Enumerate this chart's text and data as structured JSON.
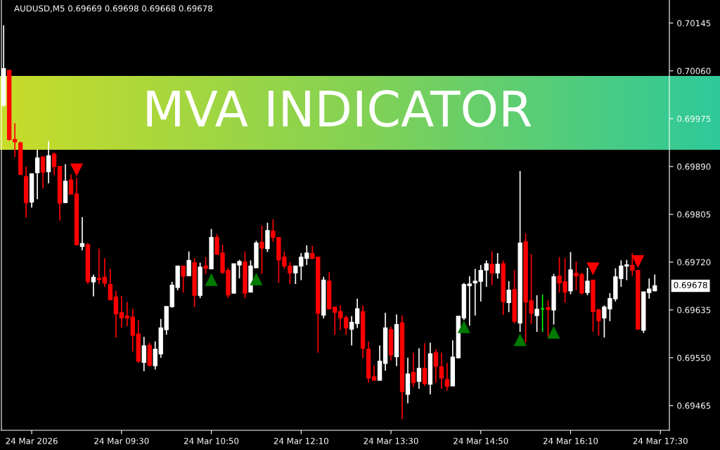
{
  "chart_data": {
    "type": "candlestick",
    "title": "MVA INDICATOR",
    "annotations": [
      "AUDUSD,M5 0.69669 0.69698 0.69668 0.69678",
      "0.69678"
    ],
    "x": [
      "2026-03-24T07:45",
      "2026-03-24T07:50",
      "2026-03-24T07:55",
      "2026-03-24T08:00",
      "2026-03-24T08:05",
      "2026-03-24T08:10",
      "2026-03-24T08:15",
      "2026-03-24T08:20",
      "2026-03-24T08:25",
      "2026-03-24T08:30",
      "2026-03-24T08:35",
      "2026-03-24T08:40",
      "2026-03-24T08:45",
      "2026-03-24T08:50",
      "2026-03-24T08:55",
      "2026-03-24T09:00",
      "2026-03-24T09:05",
      "2026-03-24T09:10",
      "2026-03-24T09:15",
      "2026-03-24T09:20",
      "2026-03-24T09:25",
      "2026-03-24T09:30",
      "2026-03-24T09:35",
      "2026-03-24T09:40",
      "2026-03-24T09:45",
      "2026-03-24T09:50",
      "2026-03-24T09:55",
      "2026-03-24T10:00",
      "2026-03-24T10:05",
      "2026-03-24T10:10",
      "2026-03-24T10:15",
      "2026-03-24T10:20",
      "2026-03-24T10:25",
      "2026-03-24T10:30",
      "2026-03-24T10:35",
      "2026-03-24T10:40",
      "2026-03-24T10:45",
      "2026-03-24T10:50",
      "2026-03-24T10:55",
      "2026-03-24T11:00",
      "2026-03-24T11:05",
      "2026-03-24T11:10",
      "2026-03-24T11:15",
      "2026-03-24T11:20",
      "2026-03-24T11:25",
      "2026-03-24T11:30",
      "2026-03-24T11:35",
      "2026-03-24T11:40",
      "2026-03-24T11:45",
      "2026-03-24T11:50",
      "2026-03-24T11:55",
      "2026-03-24T12:00",
      "2026-03-24T12:05",
      "2026-03-24T12:10",
      "2026-03-24T12:15",
      "2026-03-24T12:20",
      "2026-03-24T12:25",
      "2026-03-24T12:30",
      "2026-03-24T12:35",
      "2026-03-24T12:40",
      "2026-03-24T12:45",
      "2026-03-24T12:50",
      "2026-03-24T12:55",
      "2026-03-24T13:00",
      "2026-03-24T13:05",
      "2026-03-24T13:10",
      "2026-03-24T13:15",
      "2026-03-24T13:20",
      "2026-03-24T13:25",
      "2026-03-24T13:30",
      "2026-03-24T13:35",
      "2026-03-24T13:40",
      "2026-03-24T13:45",
      "2026-03-24T13:50",
      "2026-03-24T13:55",
      "2026-03-24T14:00",
      "2026-03-24T14:05",
      "2026-03-24T14:10",
      "2026-03-24T14:15",
      "2026-03-24T14:20",
      "2026-03-24T14:25",
      "2026-03-24T14:30",
      "2026-03-24T14:35",
      "2026-03-24T14:40",
      "2026-03-24T14:45",
      "2026-03-24T14:50",
      "2026-03-24T14:55",
      "2026-03-24T15:00",
      "2026-03-24T15:05",
      "2026-03-24T15:10",
      "2026-03-24T15:15",
      "2026-03-24T15:20",
      "2026-03-24T15:25",
      "2026-03-24T15:30",
      "2026-03-24T15:35",
      "2026-03-24T15:40",
      "2026-03-24T15:45",
      "2026-03-24T15:50",
      "2026-03-24T15:55",
      "2026-03-24T16:00",
      "2026-03-24T16:05",
      "2026-03-24T16:10",
      "2026-03-24T16:15",
      "2026-03-24T16:20",
      "2026-03-24T16:25",
      "2026-03-24T16:30",
      "2026-03-24T16:35",
      "2026-03-24T16:40",
      "2026-03-24T16:45",
      "2026-03-24T16:50",
      "2026-03-24T16:55",
      "2026-03-24T17:00",
      "2026-03-24T17:05",
      "2026-03-24T17:10",
      "2026-03-24T17:15",
      "2026-03-24T17:20",
      "2026-03-24T17:25"
    ],
    "ohlc": [
      [
        0.69999,
        0.70141,
        0.69996,
        0.70064
      ],
      [
        0.70061,
        0.70061,
        0.69936,
        0.69938
      ],
      [
        0.69938,
        0.69967,
        0.69907,
        0.69934
      ],
      [
        0.69932,
        0.69934,
        0.69875,
        0.69876
      ],
      [
        0.69872,
        0.6989,
        0.69799,
        0.69826
      ],
      [
        0.69827,
        0.69877,
        0.69817,
        0.69877
      ],
      [
        0.69879,
        0.6992,
        0.69832,
        0.69905
      ],
      [
        0.69907,
        0.69907,
        0.69851,
        0.6988
      ],
      [
        0.69881,
        0.69935,
        0.6986,
        0.69909
      ],
      [
        0.69912,
        0.69915,
        0.69875,
        0.6989
      ],
      [
        0.6989,
        0.6989,
        0.69794,
        0.69825
      ],
      [
        0.69826,
        0.69894,
        0.69825,
        0.69864
      ],
      [
        0.69866,
        0.69876,
        0.69841,
        0.69841
      ],
      [
        0.69841,
        0.6987,
        0.6975,
        0.69751
      ],
      [
        0.69748,
        0.698,
        0.69741,
        0.69753
      ],
      [
        0.69751,
        0.69754,
        0.69681,
        0.69686
      ],
      [
        0.69685,
        0.69698,
        0.69659,
        0.69693
      ],
      [
        0.69691,
        0.69744,
        0.69681,
        0.69689
      ],
      [
        0.69693,
        0.69727,
        0.69676,
        0.69683
      ],
      [
        0.6968,
        0.69708,
        0.69653,
        0.69653
      ],
      [
        0.69658,
        0.69669,
        0.69586,
        0.69628
      ],
      [
        0.6963,
        0.6966,
        0.69603,
        0.69621
      ],
      [
        0.69624,
        0.69649,
        0.69606,
        0.69621
      ],
      [
        0.69622,
        0.69637,
        0.69561,
        0.6959
      ],
      [
        0.69592,
        0.69617,
        0.69541,
        0.69544
      ],
      [
        0.69542,
        0.69587,
        0.69526,
        0.69571
      ],
      [
        0.69572,
        0.69577,
        0.69534,
        0.69537
      ],
      [
        0.69536,
        0.69579,
        0.69529,
        0.69565
      ],
      [
        0.69557,
        0.69619,
        0.6955,
        0.69603
      ],
      [
        0.696,
        0.69641,
        0.69591,
        0.69641
      ],
      [
        0.69641,
        0.69685,
        0.69639,
        0.69679
      ],
      [
        0.69675,
        0.69713,
        0.6967,
        0.69713
      ],
      [
        0.69713,
        0.69713,
        0.69666,
        0.69695
      ],
      [
        0.69696,
        0.69739,
        0.69696,
        0.69723
      ],
      [
        0.69719,
        0.69727,
        0.6964,
        0.69661
      ],
      [
        0.69661,
        0.69719,
        0.69656,
        0.69711
      ],
      [
        0.69713,
        0.69729,
        0.69699,
        0.69709
      ],
      [
        0.69708,
        0.69779,
        0.69708,
        0.69764
      ],
      [
        0.69764,
        0.6977,
        0.69733,
        0.69734
      ],
      [
        0.69736,
        0.69751,
        0.69699,
        0.69702
      ],
      [
        0.69705,
        0.6971,
        0.69656,
        0.69662
      ],
      [
        0.69665,
        0.69717,
        0.69664,
        0.69717
      ],
      [
        0.69715,
        0.69724,
        0.69691,
        0.69721
      ],
      [
        0.6972,
        0.69739,
        0.69656,
        0.69665
      ],
      [
        0.69667,
        0.69723,
        0.69667,
        0.69713
      ],
      [
        0.6971,
        0.69758,
        0.6971,
        0.69754
      ],
      [
        0.69755,
        0.69785,
        0.69699,
        0.69745
      ],
      [
        0.69744,
        0.6979,
        0.69738,
        0.69776
      ],
      [
        0.69775,
        0.69796,
        0.69756,
        0.69764
      ],
      [
        0.69764,
        0.69764,
        0.69683,
        0.69724
      ],
      [
        0.69729,
        0.69739,
        0.69708,
        0.69713
      ],
      [
        0.69713,
        0.6972,
        0.69681,
        0.69701
      ],
      [
        0.69701,
        0.69713,
        0.69681,
        0.69713
      ],
      [
        0.69713,
        0.69736,
        0.69688,
        0.69729
      ],
      [
        0.69727,
        0.6975,
        0.69715,
        0.69736
      ],
      [
        0.69735,
        0.69749,
        0.69725,
        0.69727
      ],
      [
        0.69729,
        0.69729,
        0.69559,
        0.69629
      ],
      [
        0.69626,
        0.69694,
        0.6962,
        0.69688
      ],
      [
        0.69686,
        0.69702,
        0.69636,
        0.69637
      ],
      [
        0.6964,
        0.6964,
        0.69591,
        0.69631
      ],
      [
        0.69632,
        0.69643,
        0.69599,
        0.69621
      ],
      [
        0.69621,
        0.69625,
        0.69591,
        0.69603
      ],
      [
        0.69601,
        0.69624,
        0.69572,
        0.69613
      ],
      [
        0.69611,
        0.69655,
        0.69603,
        0.69637
      ],
      [
        0.69632,
        0.69643,
        0.69549,
        0.69567
      ],
      [
        0.69565,
        0.69579,
        0.69506,
        0.69514
      ],
      [
        0.69516,
        0.69536,
        0.6951,
        0.6951
      ],
      [
        0.6951,
        0.69572,
        0.6951,
        0.69544
      ],
      [
        0.6954,
        0.6963,
        0.69527,
        0.69603
      ],
      [
        0.696,
        0.69605,
        0.69545,
        0.69555
      ],
      [
        0.69552,
        0.69627,
        0.69535,
        0.69609
      ],
      [
        0.69612,
        0.69625,
        0.69441,
        0.6949
      ],
      [
        0.69485,
        0.6955,
        0.69469,
        0.69521
      ],
      [
        0.69524,
        0.69559,
        0.69498,
        0.69506
      ],
      [
        0.69508,
        0.69567,
        0.69495,
        0.69531
      ],
      [
        0.69531,
        0.69576,
        0.695,
        0.69504
      ],
      [
        0.69503,
        0.69577,
        0.69485,
        0.69557
      ],
      [
        0.69559,
        0.69565,
        0.69505,
        0.69535
      ],
      [
        0.69534,
        0.69559,
        0.69495,
        0.69514
      ],
      [
        0.69511,
        0.69541,
        0.69492,
        0.69499
      ],
      [
        0.695,
        0.69581,
        0.695,
        0.69551
      ],
      [
        0.6955,
        0.69624,
        0.69549,
        0.69624
      ],
      [
        0.69621,
        0.69683,
        0.69617,
        0.6968
      ],
      [
        0.69678,
        0.69695,
        0.69607,
        0.69681
      ],
      [
        0.69683,
        0.69708,
        0.69625,
        0.69686
      ],
      [
        0.69686,
        0.69715,
        0.6965,
        0.69705
      ],
      [
        0.69706,
        0.69723,
        0.69676,
        0.69717
      ],
      [
        0.69716,
        0.69739,
        0.69679,
        0.69701
      ],
      [
        0.69701,
        0.69736,
        0.69691,
        0.69716
      ],
      [
        0.69717,
        0.69723,
        0.69626,
        0.6965
      ],
      [
        0.69648,
        0.69686,
        0.69631,
        0.6967
      ],
      [
        0.69671,
        0.69706,
        0.69611,
        0.69615
      ],
      [
        0.69612,
        0.69882,
        0.69596,
        0.69754
      ],
      [
        0.69756,
        0.69771,
        0.69577,
        0.69649
      ],
      [
        0.69651,
        0.69734,
        0.6961,
        0.69629
      ],
      [
        0.69625,
        0.69661,
        0.69596,
        0.69636
      ],
      [
        0.69637,
        0.69662,
        0.69596,
        0.69637
      ],
      [
        0.69639,
        0.69652,
        0.69587,
        0.69636
      ],
      [
        0.69635,
        0.69699,
        0.69609,
        0.69694
      ],
      [
        0.69695,
        0.69729,
        0.69666,
        0.69683
      ],
      [
        0.69685,
        0.69727,
        0.69648,
        0.69667
      ],
      [
        0.69669,
        0.69738,
        0.69663,
        0.69706
      ],
      [
        0.697,
        0.69721,
        0.6967,
        0.69696
      ],
      [
        0.69698,
        0.69701,
        0.69663,
        0.69665
      ],
      [
        0.69666,
        0.6971,
        0.69661,
        0.69686
      ],
      [
        0.69688,
        0.69688,
        0.69596,
        0.69632
      ],
      [
        0.69635,
        0.69637,
        0.69589,
        0.69616
      ],
      [
        0.69621,
        0.69643,
        0.69586,
        0.6964
      ],
      [
        0.69637,
        0.69665,
        0.69615,
        0.69655
      ],
      [
        0.69655,
        0.69709,
        0.6965,
        0.69694
      ],
      [
        0.69691,
        0.69723,
        0.69676,
        0.69713
      ],
      [
        0.69713,
        0.69724,
        0.69688,
        0.69715
      ],
      [
        0.69714,
        0.69736,
        0.69696,
        0.69706
      ],
      [
        0.69705,
        0.69705,
        0.69601,
        0.69601
      ],
      [
        0.69599,
        0.69667,
        0.69594,
        0.69667
      ],
      [
        0.69666,
        0.69691,
        0.69655,
        0.69672
      ],
      [
        0.69669,
        0.69698,
        0.69668,
        0.69678
      ]
    ],
    "colors": [
      "#ffffff",
      "#ff0000",
      "#ff0000",
      "#ff0000",
      "#ff0000",
      "#ffffff",
      "#ffffff",
      "#ff0000",
      "#ffffff",
      "#ff0000",
      "#ff0000",
      "#ffffff",
      "#ff0000",
      "#ff0000",
      "#ffffff",
      "#ff0000",
      "#ffffff",
      "#ff0000",
      "#ff0000",
      "#ff0000",
      "#ff0000",
      "#ff0000",
      "#ff0000",
      "#ff0000",
      "#ff0000",
      "#ffffff",
      "#ff0000",
      "#ffffff",
      "#ffffff",
      "#ffffff",
      "#ffffff",
      "#ffffff",
      "#ff0000",
      "#ffffff",
      "#ff0000",
      "#ffffff",
      "#ff0000",
      "#ffffff",
      "#ff0000",
      "#ff0000",
      "#ff0000",
      "#ffffff",
      "#ffffff",
      "#ff0000",
      "#ffffff",
      "#ffffff",
      "#ff0000",
      "#ffffff",
      "#ff0000",
      "#ff0000",
      "#ff0000",
      "#ff0000",
      "#ffffff",
      "#ffffff",
      "#ffffff",
      "#ff0000",
      "#ff0000",
      "#ffffff",
      "#ff0000",
      "#ff0000",
      "#ff0000",
      "#ff0000",
      "#ffffff",
      "#ffffff",
      "#ff0000",
      "#ff0000",
      "#ff0000",
      "#ffffff",
      "#ffffff",
      "#ff0000",
      "#ffffff",
      "#ff0000",
      "#ffffff",
      "#ff0000",
      "#ffffff",
      "#ff0000",
      "#ffffff",
      "#ff0000",
      "#ff0000",
      "#ff0000",
      "#ffffff",
      "#ffffff",
      "#ffffff",
      "#ffffff",
      "#ffffff",
      "#ffffff",
      "#ffffff",
      "#ff0000",
      "#ffffff",
      "#ff0000",
      "#ffffff",
      "#ff0000",
      "#ffffff",
      "#ff0000",
      "#ff0000",
      "#ffffff",
      "#00ff00",
      "#ff0000",
      "#ffffff",
      "#ff0000",
      "#ff0000",
      "#ffffff",
      "#ff0000",
      "#ff0000",
      "#ffffff",
      "#ff0000",
      "#ff0000",
      "#ffffff",
      "#ffffff",
      "#ffffff",
      "#ffffff",
      "#ffffff",
      "#ff0000",
      "#ff0000",
      "#ffffff",
      "#ffffff",
      "#ffffff"
    ],
    "series": [
      {
        "type": "scatter",
        "color": "#007a00",
        "marker": "triangle",
        "x": [
          "2026-03-24T10:50",
          "2026-03-24T11:30",
          "2026-03-24T14:35",
          "2026-03-24T15:25",
          "2026-03-24T15:55"
        ],
        "values": [
          0.69689,
          0.6969,
          0.69605,
          0.69582,
          0.69595
        ]
      },
      {
        "type": "scatter",
        "color": "#ff0000",
        "marker": "triangle_down",
        "x": [
          "2026-03-24T08:50",
          "2026-03-24T16:30",
          "2026-03-24T17:10"
        ],
        "values": [
          0.69884,
          0.69708,
          0.69721
        ]
      }
    ],
    "xlim": [
      "2026-03-24T07:43",
      "2026-03-24T17:38"
    ],
    "xticks": [
      {
        "value": "2026-03-24T08:10",
        "label": "24 Mar 2026"
      },
      {
        "value": "2026-03-24T09:30",
        "label": "24 Mar 09:30"
      },
      {
        "value": "2026-03-24T10:50",
        "label": "24 Mar 10:50"
      },
      {
        "value": "2026-03-24T12:10",
        "label": "24 Mar 12:10"
      },
      {
        "value": "2026-03-24T13:30",
        "label": "24 Mar 13:30"
      },
      {
        "value": "2026-03-24T14:50",
        "label": "24 Mar 14:50"
      },
      {
        "value": "2026-03-24T16:10",
        "label": "24 Mar 16:10"
      },
      {
        "value": "2026-03-24T17:30",
        "label": "24 Mar 17:30"
      }
    ],
    "ylim": [
      0.69421,
      0.70186
    ],
    "yticks": [
      0.70145,
      {
        "value": 0.7006,
        "label": "0.70060"
      },
      0.69975,
      {
        "value": 0.6989,
        "label": "0.69890"
      },
      0.69805,
      {
        "value": 0.6972,
        "label": "0.69720"
      },
      0.69635,
      {
        "value": 0.6955,
        "label": "0.69550"
      },
      0.69465
    ],
    "grid": false,
    "legend": false
  }
}
